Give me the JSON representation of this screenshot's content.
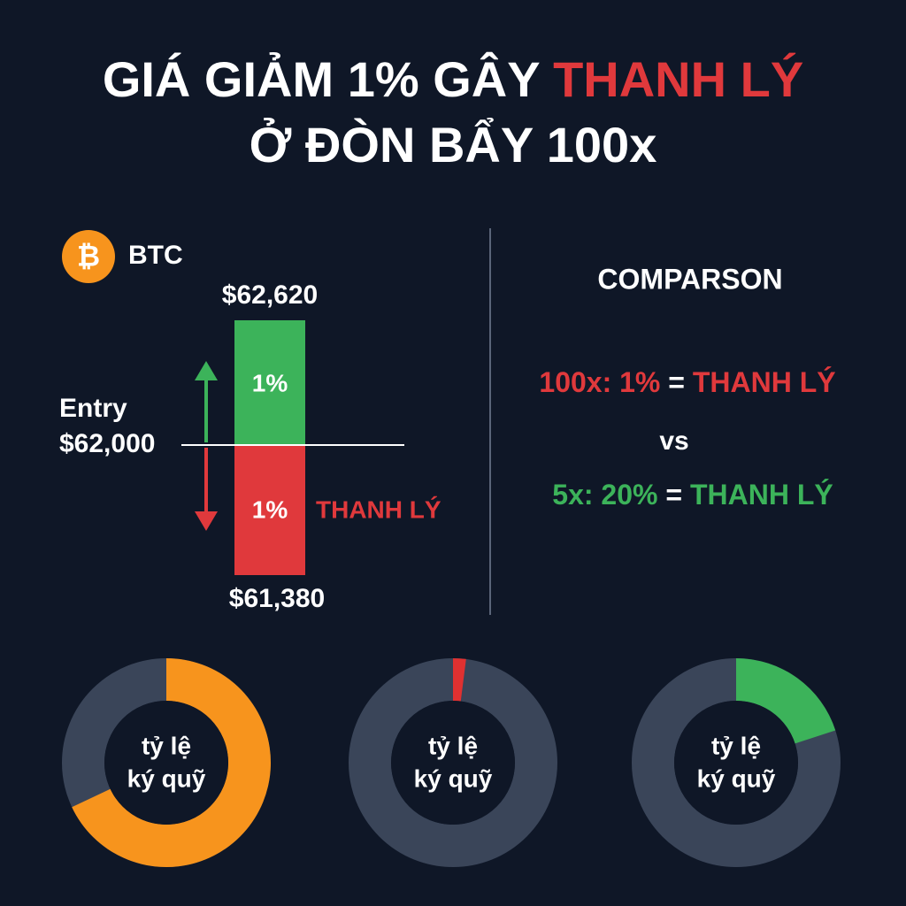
{
  "title": {
    "part1": "GIÁ GIẢM 1% GÂY",
    "part2": "THANH LÝ",
    "line2": "Ở ĐÒN BẨY 100x"
  },
  "btc": {
    "icon": "₿",
    "name": "BTC",
    "high": "$62,620",
    "up_pct": "1%",
    "entry_label": "Entry",
    "entry": "$62,000",
    "down_pct": "1%",
    "liquidation": "THANH LÝ",
    "low": "$61,380"
  },
  "comparison": {
    "title": "COMPARSON",
    "line1": {
      "left": "100x: 1%",
      "eq": "=",
      "right": "THANH LÝ"
    },
    "vs": "vs",
    "line2": {
      "left": "5x: 20%",
      "eq": "=",
      "right": "THANH LÝ"
    }
  },
  "donuts": [
    {
      "line1": "tỷ lệ",
      "line2": "ký quỹ",
      "value": 68,
      "color": "#f7941d"
    },
    {
      "line1": "tỷ lệ",
      "line2": "ký quỹ",
      "value": 2,
      "color": "#e03131"
    },
    {
      "line1": "tỷ lệ",
      "line2": "ký quỹ",
      "value": 20,
      "color": "#3cb35a"
    }
  ]
}
